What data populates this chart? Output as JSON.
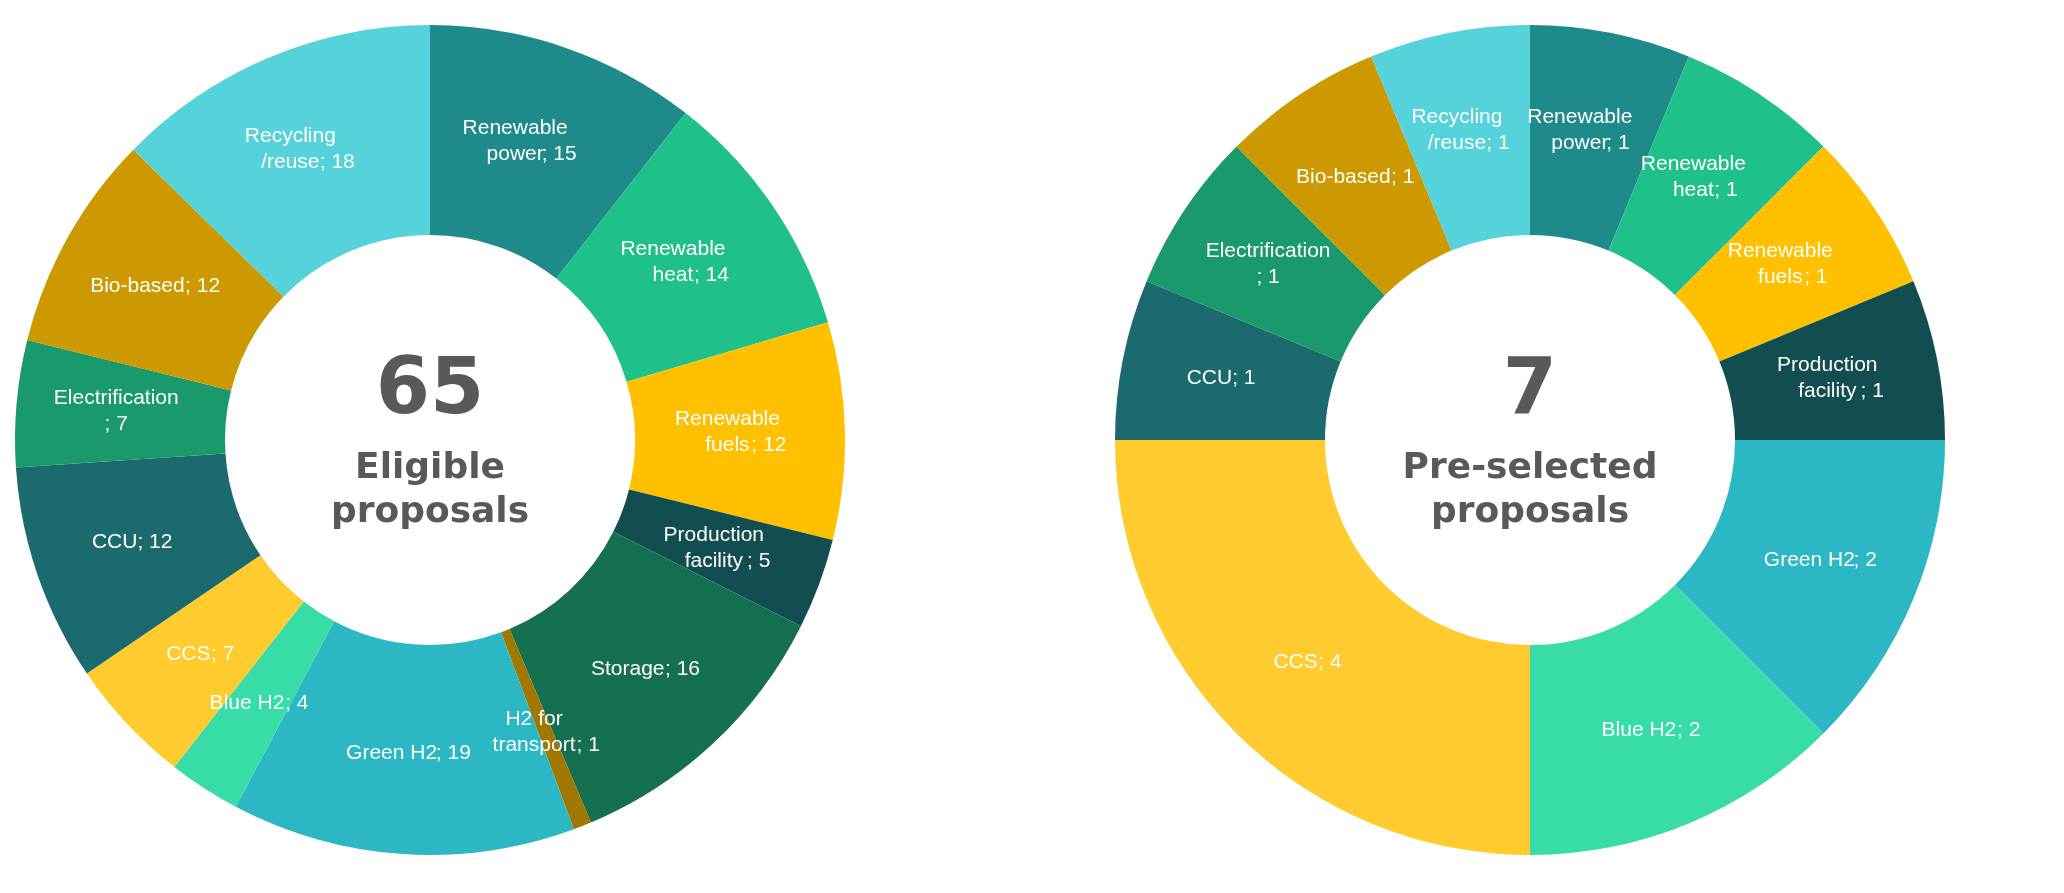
{
  "chart_data": [
    {
      "type": "donut",
      "annotations": [
        "65",
        "Eligible proposals"
      ],
      "legend": false,
      "categories": [
        "Renewable power",
        "Renewable heat",
        "Renewable fuels",
        "Production facility",
        "Storage",
        "H2 for transport",
        "Green H2",
        "Blue H2",
        "CCS",
        "CCU",
        "Electrification",
        "Bio-based",
        "Recycling /reuse"
      ],
      "values": [
        15,
        14,
        12,
        5,
        16,
        1,
        19,
        4,
        7,
        12,
        7,
        12,
        18
      ],
      "value_labels": [
        "; 15",
        "; 14",
        "; 12",
        "; 5",
        "; 16",
        "; 1",
        "; 19",
        "; 4",
        "; 7",
        "; 12",
        "; 7",
        "; 12",
        "; 18"
      ],
      "colors": [
        "#1f8a8a",
        "#20c08a",
        "#ffc000",
        "#124d4f",
        "#147050",
        "#a07800",
        "#2bb8c4",
        "#38dca6",
        "#ffcb2f",
        "#1a6a6e",
        "#1a9a6a",
        "#cc9900",
        "#55d2da"
      ]
    },
    {
      "type": "donut",
      "annotations": [
        "7",
        "Pre-selected proposals"
      ],
      "legend": false,
      "categories": [
        "Renewable power",
        "Renewable heat",
        "Renewable fuels",
        "Production facility",
        "Green H2",
        "Blue H2",
        "CCS",
        "CCU",
        "Electrification",
        "Bio-based",
        "Recycling /reuse"
      ],
      "values": [
        1,
        1,
        1,
        1,
        2,
        2,
        4,
        1,
        1,
        1,
        1
      ],
      "value_labels": [
        "; 1",
        "; 1",
        "; 1",
        "; 1",
        "; 2",
        "; 2",
        "; 4",
        "; 1",
        "; 1",
        "; 1",
        "; 1"
      ],
      "colors": [
        "#1f8a8a",
        "#20c08a",
        "#ffc000",
        "#124d4f",
        "#2bb8c4",
        "#38dca6",
        "#ffcb2f",
        "#1a6a6e",
        "#1a9a6a",
        "#cc9900",
        "#55d2da"
      ]
    }
  ]
}
